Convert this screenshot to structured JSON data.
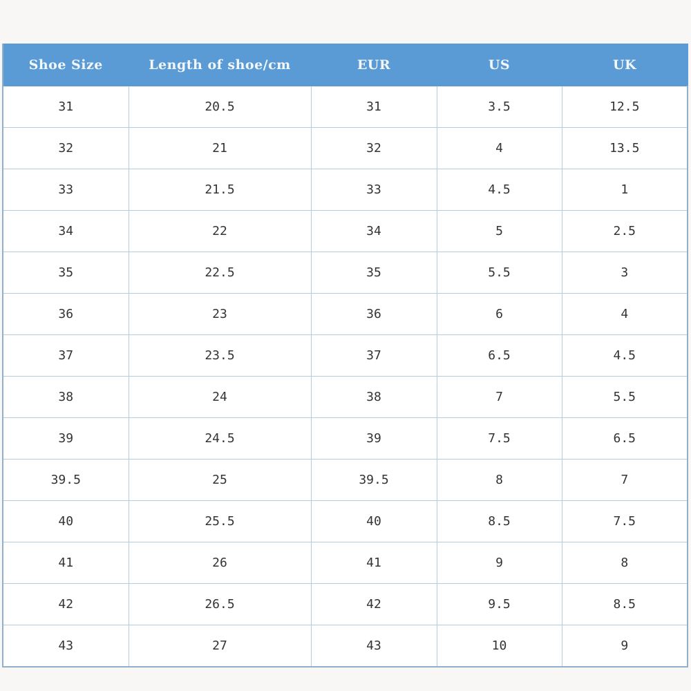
{
  "table": {
    "headers": [
      "Shoe Size",
      "Length of shoe/cm",
      "EUR",
      "US",
      "UK"
    ],
    "rows": [
      [
        "31",
        "20.5",
        "31",
        "3.5",
        "12.5"
      ],
      [
        "32",
        "21",
        "32",
        "4",
        "13.5"
      ],
      [
        "33",
        "21.5",
        "33",
        "4.5",
        "1"
      ],
      [
        "34",
        "22",
        "34",
        "5",
        "2.5"
      ],
      [
        "35",
        "22.5",
        "35",
        "5.5",
        "3"
      ],
      [
        "36",
        "23",
        "36",
        "6",
        "4"
      ],
      [
        "37",
        "23.5",
        "37",
        "6.5",
        "4.5"
      ],
      [
        "38",
        "24",
        "38",
        "7",
        "5.5"
      ],
      [
        "39",
        "24.5",
        "39",
        "7.5",
        "6.5"
      ],
      [
        "39.5",
        "25",
        "39.5",
        "8",
        "7"
      ],
      [
        "40",
        "25.5",
        "40",
        "8.5",
        "7.5"
      ],
      [
        "41",
        "26",
        "41",
        "9",
        "8"
      ],
      [
        "42",
        "26.5",
        "42",
        "9.5",
        "8.5"
      ],
      [
        "43",
        "27",
        "43",
        "10",
        "9"
      ]
    ]
  },
  "colors": {
    "header_bg": "#5b9bd5",
    "header_text": "#f2f7fb",
    "border": "#b4cbe0",
    "page_bg": "#f9f6f6"
  }
}
